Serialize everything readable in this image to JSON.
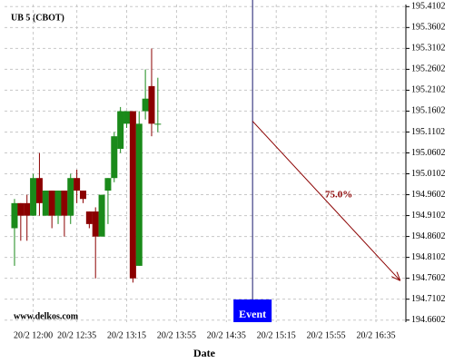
{
  "chart_data": {
    "type": "candlestick",
    "title": "UB 5 (CBOT)",
    "x_label": "Date",
    "watermark": "www.delkos.com",
    "up_color": "#1a8a1a",
    "down_color": "#8b0000",
    "x": [
      "20/2 11:45",
      "20/2 11:50",
      "20/2 11:55",
      "20/2 12:00",
      "20/2 12:05",
      "20/2 12:10",
      "20/2 12:15",
      "20/2 12:20",
      "20/2 12:25",
      "20/2 12:30",
      "20/2 12:35",
      "20/2 12:40",
      "20/2 12:45",
      "20/2 12:50",
      "20/2 12:55",
      "20/2 13:00",
      "20/2 13:05",
      "20/2 13:10",
      "20/2 13:15",
      "20/2 13:20",
      "20/2 13:25",
      "20/2 13:30",
      "20/2 13:35",
      "20/2 13:40"
    ],
    "open": [
      194.88,
      194.94,
      194.94,
      194.91,
      195.0,
      194.91,
      194.97,
      194.91,
      194.97,
      194.91,
      195.0,
      194.97,
      194.92,
      194.92,
      194.86,
      194.97,
      195.0,
      195.07,
      195.13,
      195.16,
      194.79,
      195.16,
      195.22,
      195.13
    ],
    "high": [
      194.95,
      194.94,
      194.96,
      195.01,
      195.06,
      194.97,
      194.97,
      194.97,
      194.97,
      195.01,
      195.02,
      194.97,
      194.92,
      194.93,
      194.96,
      195.0,
      195.11,
      195.17,
      195.16,
      195.16,
      195.16,
      195.26,
      195.31,
      195.24
    ],
    "low": [
      194.79,
      194.85,
      194.85,
      194.91,
      194.91,
      194.91,
      194.88,
      194.89,
      194.86,
      194.89,
      194.94,
      194.94,
      194.88,
      194.76,
      194.86,
      194.89,
      194.99,
      195.06,
      195.12,
      194.75,
      194.79,
      195.14,
      195.1,
      195.11
    ],
    "close": [
      194.94,
      194.91,
      194.91,
      195.0,
      194.94,
      194.97,
      194.91,
      194.97,
      194.91,
      195.0,
      194.97,
      194.95,
      194.89,
      194.86,
      194.96,
      195.0,
      195.1,
      195.16,
      195.16,
      194.76,
      195.13,
      195.19,
      195.13,
      195.13
    ],
    "xlim": [
      "20/2 11:37",
      "20/2 16:59"
    ],
    "xticks": [
      "20/2 12:00",
      "20/2 12:35",
      "20/2 13:15",
      "20/2 13:55",
      "20/2 14:35",
      "20/2 15:15",
      "20/2 15:55",
      "20/2 16:35"
    ],
    "ylim": [
      194.6552,
      195.4152
    ],
    "yticks": [
      195.4102,
      195.3602,
      195.3102,
      195.2602,
      195.2102,
      195.1602,
      195.1102,
      195.0602,
      195.0102,
      194.9602,
      194.9102,
      194.8602,
      194.8102,
      194.7602,
      194.7102,
      194.6602
    ],
    "grid": true,
    "event": {
      "x": "20/2 14:56",
      "label": "Event",
      "color": "#0000ff"
    },
    "projection": {
      "x": [
        "20/2 14:56",
        "20/2 16:54"
      ],
      "y": [
        195.136,
        194.756
      ],
      "label": "75.0%",
      "color": "#8b0000"
    }
  }
}
